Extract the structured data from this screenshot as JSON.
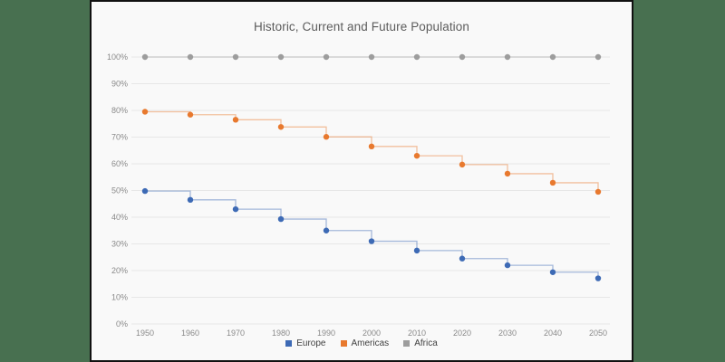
{
  "window": {
    "background_color": "#487050",
    "card_background": "#f9f9f9",
    "card_border_color": "#111111"
  },
  "chart_data": {
    "type": "line",
    "subtype": "step-after",
    "title": "Historic, Current and Future Population",
    "categories": [
      1950,
      1960,
      1970,
      1980,
      1990,
      2000,
      2010,
      2020,
      2030,
      2040,
      2050
    ],
    "series": [
      {
        "name": "Europe",
        "color": "#3d6ab5",
        "values": [
          49.8,
          46.5,
          43.0,
          39.3,
          35.0,
          31.0,
          27.5,
          24.5,
          22.0,
          19.4,
          17.1
        ]
      },
      {
        "name": "Americas",
        "color": "#e8792e",
        "values": [
          79.5,
          78.4,
          76.5,
          73.8,
          70.1,
          66.5,
          63.0,
          59.7,
          56.3,
          52.9,
          49.5
        ]
      },
      {
        "name": "Africa",
        "color": "#9d9d9d",
        "values": [
          100,
          100,
          100,
          100,
          100,
          100,
          100,
          100,
          100,
          100,
          100
        ]
      }
    ],
    "xlabel": "",
    "ylabel": "",
    "ylim": [
      0,
      100
    ],
    "ytick_step": 10,
    "ytick_suffix": "%",
    "grid": "horizontal",
    "grid_color": "#e7e7e7",
    "axis_label_color": "#8a8a8a",
    "legend_position": "bottom",
    "legend_labels": [
      "Europe",
      "Americas",
      "Africa"
    ]
  }
}
